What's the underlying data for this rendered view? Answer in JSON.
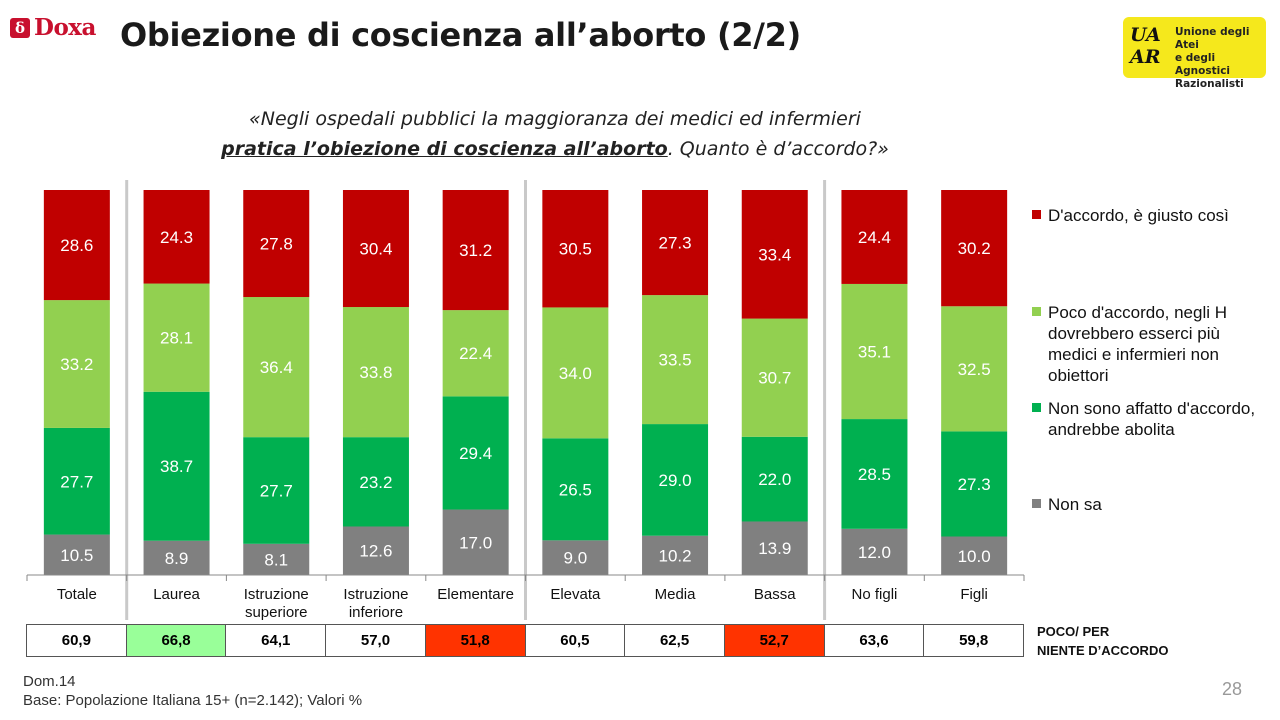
{
  "header": {
    "brand": "Doxa",
    "title": "Obiezione di coscienza all’aborto (2/2)",
    "uaar": {
      "mark_line1": "UA",
      "mark_line2": "AR",
      "text": [
        "Unione degli Atei",
        "e degli Agnostici",
        "Razionalisti"
      ]
    }
  },
  "question": {
    "line1": "«Negli ospedali pubblici la maggioranza dei medici ed infermieri",
    "emph": "pratica l’obiezione di coscienza all’aborto",
    "rest": ". Quanto è d’accordo?»"
  },
  "chart_data": {
    "type": "bar",
    "stacked": true,
    "categories": [
      "Totale",
      "Laurea",
      "Istruzione superiore",
      "Istruzione inferiore",
      "Elementare",
      "Elevata",
      "Media",
      "Bassa",
      "No figli",
      "Figli"
    ],
    "category_lines": [
      [
        "Totale"
      ],
      [
        "Laurea"
      ],
      [
        "Istruzione",
        "superiore"
      ],
      [
        "Istruzione",
        "inferiore"
      ],
      [
        "Elementare"
      ],
      [
        "Elevata"
      ],
      [
        "Media"
      ],
      [
        "Bassa"
      ],
      [
        "No figli"
      ],
      [
        "Figli"
      ]
    ],
    "value_labels_bottom_to_top": [
      [
        "10.5",
        "27.7",
        "33.2",
        "28.6"
      ],
      [
        "8.9",
        "38.7",
        "28.1",
        "24.3"
      ],
      [
        "8.1",
        "27.7",
        "36.4",
        "27.8"
      ],
      [
        "12.6",
        "23.2",
        "33.8",
        "30.4"
      ],
      [
        "17.0",
        "29.4",
        "22.4",
        "31.2"
      ],
      [
        "9.0",
        "26.5",
        "34.0",
        "30.5"
      ],
      [
        "10.2",
        "29.0",
        "33.5",
        "27.3"
      ],
      [
        "13.9",
        "22.0",
        "30.7",
        "33.4"
      ],
      [
        "12.0",
        "28.5",
        "35.1",
        "24.4"
      ],
      [
        "10.0",
        "27.3",
        "32.5",
        "30.2"
      ]
    ],
    "series": [
      {
        "name": "D'accordo, è giusto così",
        "color": "#c00000",
        "values": [
          28.6,
          24.3,
          27.8,
          30.4,
          31.2,
          30.5,
          27.3,
          33.4,
          24.4,
          30.2
        ]
      },
      {
        "name": "Poco d'accordo, negli H dovrebbero esserci più medici e infermieri non obiettori",
        "color": "#92d050",
        "values": [
          33.2,
          28.1,
          36.4,
          33.8,
          22.4,
          34.0,
          33.5,
          30.7,
          35.1,
          32.5
        ]
      },
      {
        "name": "Non sono affatto d'accordo, andrebbe abolita",
        "color": "#00b050",
        "values": [
          27.7,
          38.7,
          27.7,
          23.2,
          29.4,
          26.5,
          29.0,
          22.0,
          28.5,
          27.3
        ]
      },
      {
        "name": "Non sa",
        "color": "#808080",
        "values": [
          10.5,
          8.9,
          8.1,
          12.6,
          17.0,
          9.0,
          10.2,
          13.9,
          12.0,
          10.0
        ]
      }
    ],
    "ylim": [
      0,
      100
    ],
    "group_separators_after": [
      0,
      4,
      7
    ],
    "legend_position": "right"
  },
  "summary": {
    "label_line1": "POCO/ PER",
    "label_line2": "NIENTE D’ACCORDO",
    "cells": [
      {
        "value": "60,9",
        "bg": "#ffffff"
      },
      {
        "value": "66,8",
        "bg": "#99ff99"
      },
      {
        "value": "64,1",
        "bg": "#ffffff"
      },
      {
        "value": "57,0",
        "bg": "#ffffff"
      },
      {
        "value": "51,8",
        "bg": "#ff3300"
      },
      {
        "value": "60,5",
        "bg": "#ffffff"
      },
      {
        "value": "62,5",
        "bg": "#ffffff"
      },
      {
        "value": "52,7",
        "bg": "#ff3300"
      },
      {
        "value": "63,6",
        "bg": "#ffffff"
      },
      {
        "value": "59,8",
        "bg": "#ffffff"
      }
    ]
  },
  "footer": {
    "dom": "Dom.14",
    "base": "Base: Popolazione Italiana 15+ (n=2.142); Valori %",
    "page": "28"
  }
}
